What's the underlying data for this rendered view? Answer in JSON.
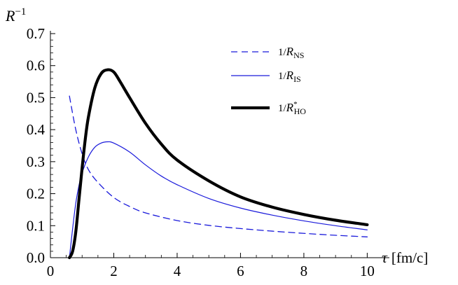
{
  "chart_data": {
    "type": "line",
    "title": "",
    "ylabel": "R",
    "ylabel_sup": "−1",
    "xlabel": "τ",
    "xlabel_unit": "[fm/c]",
    "xlim": [
      0,
      10.5
    ],
    "ylim": [
      0,
      0.7
    ],
    "x_ticks": [
      0,
      2,
      4,
      6,
      8,
      10
    ],
    "x_tick_labels": [
      "0",
      "2",
      "4",
      "6",
      "8",
      "10"
    ],
    "y_ticks": [
      0.0,
      0.1,
      0.2,
      0.3,
      0.4,
      0.5,
      0.6,
      0.7
    ],
    "y_tick_labels": [
      "0.0",
      "0.1",
      "0.2",
      "0.3",
      "0.4",
      "0.5",
      "0.6",
      "0.7"
    ],
    "grid": false,
    "legend_position": "top-right",
    "series": [
      {
        "name": "1/R_NS",
        "legend": {
          "prefix": "1/",
          "var": "R",
          "sub": "NS",
          "sup": ""
        },
        "style": "dashed",
        "color": "#1a1adb",
        "x": [
          0.6,
          0.8,
          1.0,
          1.2,
          1.5,
          2.0,
          2.5,
          3.0,
          4.0,
          5.0,
          6.0,
          7.0,
          8.0,
          9.0,
          10.0
        ],
        "y": [
          0.505,
          0.4,
          0.325,
          0.275,
          0.235,
          0.188,
          0.16,
          0.14,
          0.116,
          0.101,
          0.091,
          0.083,
          0.076,
          0.07,
          0.065
        ]
      },
      {
        "name": "1/R_IS",
        "legend": {
          "prefix": "1/",
          "var": "R",
          "sub": "IS",
          "sup": ""
        },
        "style": "solid-thin",
        "color": "#1a1adb",
        "x": [
          0.6,
          0.7,
          0.8,
          0.9,
          1.0,
          1.2,
          1.4,
          1.6,
          1.8,
          2.0,
          2.5,
          3.0,
          3.5,
          4.0,
          5.0,
          6.0,
          7.0,
          8.0,
          9.0,
          10.0
        ],
        "y": [
          0.0,
          0.09,
          0.17,
          0.225,
          0.265,
          0.315,
          0.345,
          0.358,
          0.362,
          0.358,
          0.33,
          0.29,
          0.255,
          0.228,
          0.185,
          0.155,
          0.133,
          0.115,
          0.1,
          0.087
        ]
      },
      {
        "name": "1/R*_HO",
        "legend": {
          "prefix": "1/",
          "var": "R",
          "sub": "HO",
          "sup": "*"
        },
        "style": "solid-thick",
        "color": "#000000",
        "x": [
          0.6,
          0.7,
          0.8,
          0.9,
          1.0,
          1.1,
          1.2,
          1.4,
          1.6,
          1.8,
          2.0,
          2.2,
          2.5,
          3.0,
          3.5,
          4.0,
          5.0,
          6.0,
          7.0,
          8.0,
          9.0,
          10.0
        ],
        "y": [
          0.0,
          0.02,
          0.08,
          0.18,
          0.28,
          0.37,
          0.44,
          0.53,
          0.575,
          0.587,
          0.58,
          0.55,
          0.5,
          0.42,
          0.355,
          0.305,
          0.24,
          0.19,
          0.158,
          0.135,
          0.117,
          0.103
        ]
      }
    ]
  }
}
